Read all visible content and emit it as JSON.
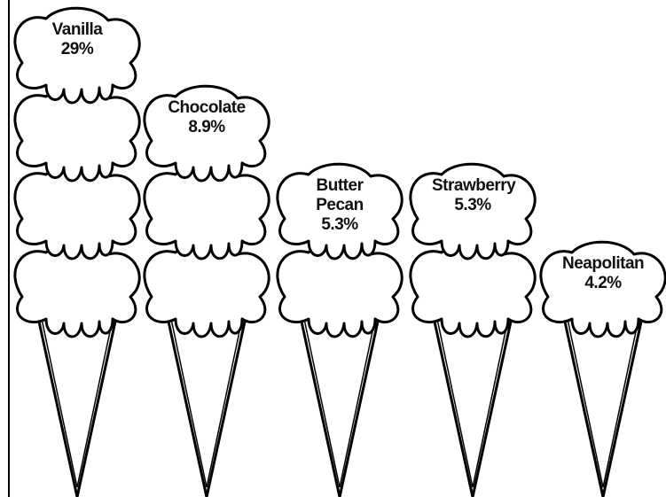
{
  "chart_data": {
    "type": "pictograph",
    "categories": [
      "Vanilla",
      "Chocolate",
      "Butter Pecan",
      "Strawberry",
      "Neapolitan"
    ],
    "values": [
      29,
      8.9,
      5.3,
      5.3,
      4.2
    ],
    "value_labels": [
      "29%",
      "8.9%",
      "5.3%",
      "5.3%",
      "4.2%"
    ]
  }
}
